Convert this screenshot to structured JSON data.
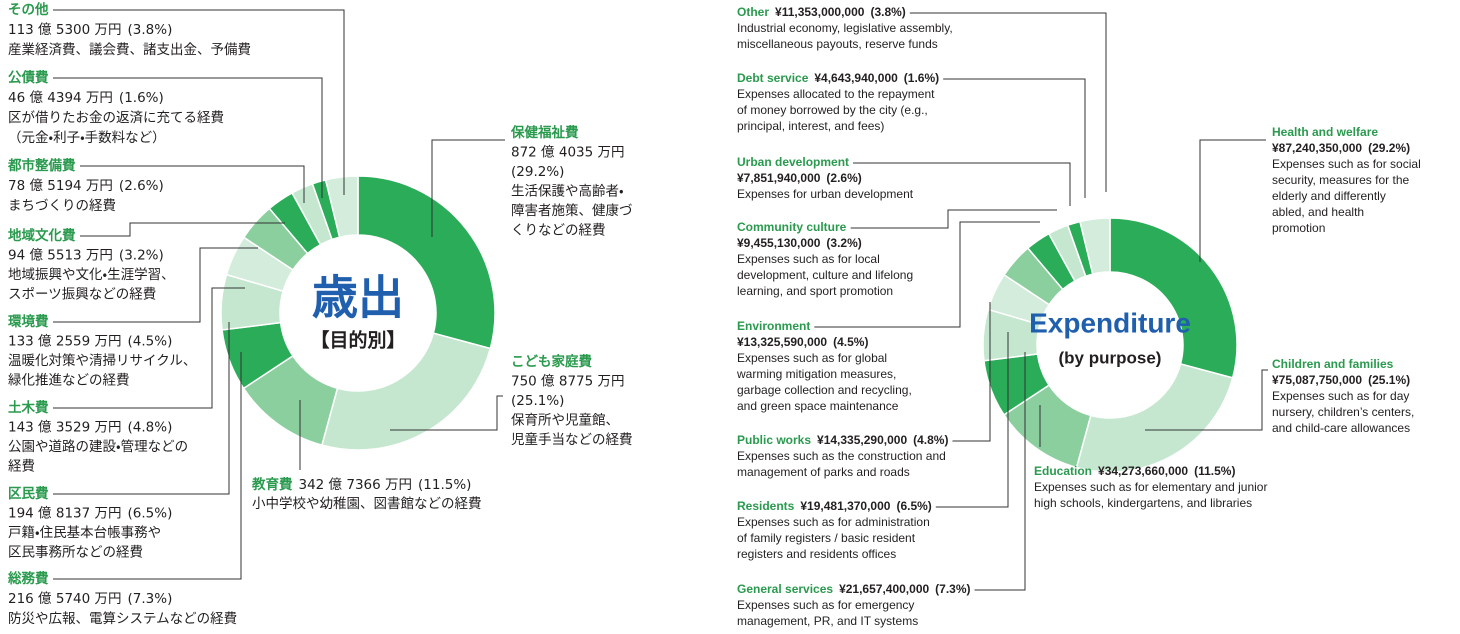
{
  "chart_data": [
    {
      "type": "pie",
      "title": "歳出",
      "subtitle": "【目的別】",
      "categories": [
        "保健福祉費",
        "こども家庭費",
        "教育費",
        "総務費",
        "区民費",
        "土木費",
        "環境費",
        "地域文化費",
        "都市整備費",
        "公債費",
        "その他"
      ],
      "values": [
        29.2,
        25.1,
        11.5,
        7.3,
        6.5,
        4.8,
        4.5,
        3.2,
        2.6,
        1.6,
        3.8
      ],
      "value_labels": [
        "(29.2%)",
        "(25.1%)",
        "(11.5%)",
        "(7.3%)",
        "(6.5%)",
        "(4.8%)",
        "(4.5%)",
        "(3.2%)",
        "(2.6%)",
        "(1.6%)",
        "(3.8%)"
      ],
      "amounts": [
        "872 億 4035 万円",
        "750 億 8775 万円",
        "342 億 7366 万円",
        "216 億 5740 万円",
        "194 億 8137 万円",
        "143 億 3529 万円",
        "133 億 2559 万円",
        "94 億 5513 万円",
        "78 億 5194 万円",
        "46 億 4394 万円",
        "113 億 5300 万円"
      ],
      "descriptions": [
        [
          "生活保護や高齢者・",
          "障害者施策、健康づ",
          "くりなどの経費"
        ],
        [
          "保育所や児童館、",
          "児童手当などの経費"
        ],
        [
          "小中学校や幼稚園、図書館などの経費"
        ],
        [
          "防災や広報、電算システムなどの経費"
        ],
        [
          "戸籍・住民基本台帳事務や",
          "区民事務所などの経費"
        ],
        [
          "公園や道路の建設・管理などの",
          "経費"
        ],
        [
          "温暖化対策や清掃リサイクル、",
          "緑化推進などの経費"
        ],
        [
          "地域振興や文化・生涯学習、",
          "スポーツ振興などの経費"
        ],
        [
          "まちづくりの経費"
        ],
        [
          "区が借りたお金の返済に充てる経費",
          "（元金・利子・手数料など）"
        ],
        [
          "産業経済費、議会費、諸支出金、予備費"
        ]
      ],
      "colors": [
        "#2aac58",
        "#c6e7cf",
        "#8ccf9f",
        "#2aac58",
        "#c6e7cf",
        "#d3ecdb",
        "#8ccf9f",
        "#2aac58",
        "#c6e7cf",
        "#2aac58",
        "#d3ecdb"
      ]
    },
    {
      "type": "pie",
      "title": "Expenditure",
      "subtitle": "(by purpose)",
      "categories": [
        "Health and welfare",
        "Children and families",
        "Education",
        "General services",
        "Residents",
        "Public works",
        "Environment",
        "Community culture",
        "Urban development",
        "Debt service",
        "Other"
      ],
      "values": [
        29.2,
        25.1,
        11.5,
        7.3,
        6.5,
        4.8,
        4.5,
        3.2,
        2.6,
        1.6,
        3.8
      ],
      "value_labels": [
        "(29.2%)",
        "(25.1%)",
        "(11.5%)",
        "(7.3%)",
        "(6.5%)",
        "(4.8%)",
        "(4.5%)",
        "(3.2%)",
        "(2.6%)",
        "(1.6%)",
        "(3.8%)"
      ],
      "amounts": [
        "¥87,240,350,000",
        "¥75,087,750,000",
        "¥34,273,660,000",
        "¥21,657,400,000",
        "¥19,481,370,000",
        "¥14,335,290,000",
        "¥13,325,590,000",
        "¥9,455,130,000",
        "¥7,851,940,000",
        "¥4,643,940,000",
        "¥11,353,000,000"
      ],
      "descriptions": [
        [
          "Expenses such as for social",
          "security, measures for the",
          "elderly and differently",
          "abled, and health",
          "promotion"
        ],
        [
          "Expenses such as for day",
          "nursery, children’s centers,",
          "and child-care allowances"
        ],
        [
          "Expenses such as for elementary and junior",
          "high schools, kindergartens, and libraries"
        ],
        [
          "Expenses such as for emergency",
          "management, PR, and IT systems"
        ],
        [
          "Expenses such as for administration",
          "of family registers / basic resident",
          "registers and residents offices"
        ],
        [
          "Expenses such as the construction and",
          "management of parks and roads"
        ],
        [
          "Expenses such as for global",
          "warming mitigation measures,",
          "garbage collection and recycling,",
          "and green space maintenance"
        ],
        [
          "Expenses such as for local",
          "development, culture and lifelong",
          "learning, and sport promotion"
        ],
        [
          "Expenses for urban development"
        ],
        [
          "Expenses allocated to the repayment",
          "of money borrowed by the city (e.g.,",
          "principal, interest, and fees)"
        ],
        [
          "Industrial economy, legislative assembly,",
          "miscellaneous payouts, reserve funds"
        ]
      ],
      "colors": [
        "#2aac58",
        "#c6e7cf",
        "#8ccf9f",
        "#2aac58",
        "#c6e7cf",
        "#d3ecdb",
        "#8ccf9f",
        "#2aac58",
        "#c6e7cf",
        "#2aac58",
        "#d3ecdb"
      ]
    }
  ]
}
